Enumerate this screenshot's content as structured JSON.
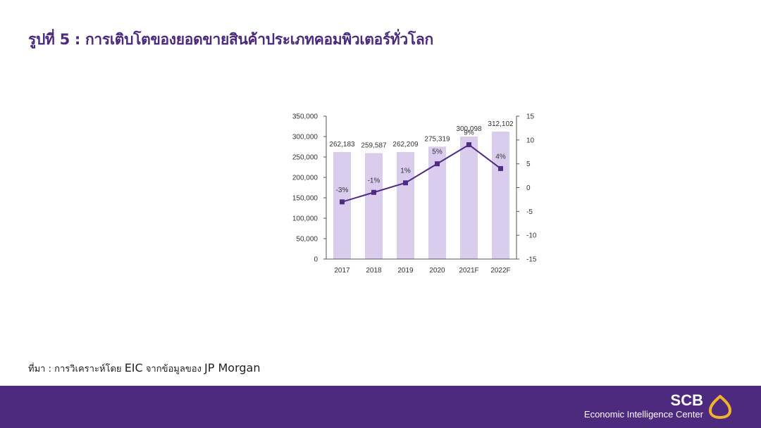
{
  "title": "รูปที่ 5 : การเติบโตของยอดขายสินค้าประเภทคอมพิวเตอร์ทั่วโลก",
  "source": {
    "prefix": "ที่มา : การวิเคราะห์โดย ",
    "org": "EIC",
    "middle": " จากข้อมูลของ ",
    "origin": "JP Morgan"
  },
  "footer": {
    "brand": "SCB",
    "subtitle": "Economic Intelligence Center",
    "logo_icon": "scb-lotus-logo-icon",
    "background_color": "#4d2a7e"
  },
  "chart_data": {
    "type": "bar",
    "categories": [
      "2017",
      "2018",
      "2019",
      "2020",
      "2021F",
      "2022F"
    ],
    "series": [
      {
        "type": "bar",
        "axis": "left",
        "values": [
          262183,
          259587,
          262209,
          275319,
          300098,
          312102
        ],
        "labels": [
          "262,183",
          "259,587",
          "262,209",
          "275,319",
          "300,098",
          "312,102"
        ],
        "color": "#d9ccec"
      },
      {
        "type": "line",
        "axis": "right",
        "values": [
          -3,
          -1,
          1,
          5,
          9,
          4
        ],
        "labels": [
          "-3%",
          "-1%",
          "1%",
          "5%",
          "9%",
          "4%"
        ],
        "color": "#4f2b83"
      }
    ],
    "y_left": {
      "ylim": [
        0,
        350000
      ],
      "ticks": [
        0,
        50000,
        100000,
        150000,
        200000,
        250000,
        300000,
        350000
      ],
      "tick_labels": [
        "0",
        "50,000",
        "100,000",
        "150,000",
        "200,000",
        "250,000",
        "300,000",
        "350,000"
      ]
    },
    "y_right": {
      "ylim": [
        -15,
        15
      ],
      "ticks": [
        -15,
        -10,
        -5,
        0,
        5,
        10,
        15
      ],
      "tick_labels": [
        "-15",
        "-10",
        "-5",
        "0",
        "5",
        "10",
        "15"
      ]
    },
    "grid": false,
    "legend": "none"
  }
}
